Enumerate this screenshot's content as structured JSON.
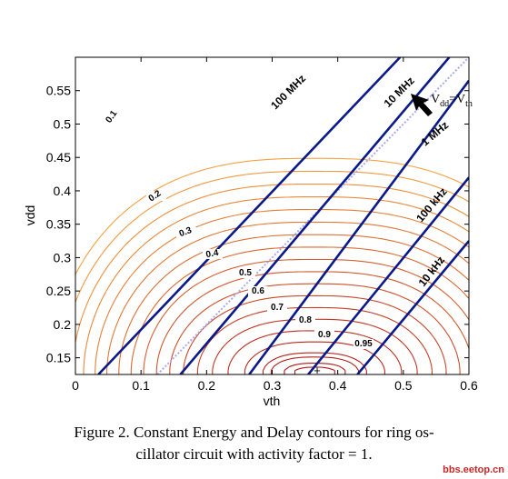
{
  "chart_data": {
    "type": "contour",
    "xlabel": "vth",
    "ylabel": "vdd",
    "xlim": [
      0,
      0.6
    ],
    "ylim": [
      0.125,
      0.6
    ],
    "xticks": [
      "0",
      "0.1",
      "0.2",
      "0.3",
      "0.4",
      "0.5",
      "0.6"
    ],
    "yticks": [
      "0.15",
      "0.2",
      "0.25",
      "0.3",
      "0.35",
      "0.4",
      "0.45",
      "0.5",
      "0.55"
    ],
    "energy_contour_labels": [
      "0.1",
      "0.2",
      "0.3",
      "0.4",
      "0.5",
      "0.6",
      "0.7",
      "0.8",
      "0.9",
      "0.95"
    ],
    "delay_contour_labels": [
      "100 MHz",
      "10 MHz",
      "1 MHz",
      "100 kHz",
      "10 kHz"
    ],
    "delay_lines": [
      {
        "name": "100 MHz",
        "x": [
          0.035,
          0.495
        ],
        "y": [
          0.125,
          0.6
        ]
      },
      {
        "name": "10 MHz",
        "x": [
          0.16,
          0.57
        ],
        "y": [
          0.125,
          0.6
        ]
      },
      {
        "name": "1 MHz",
        "x": [
          0.265,
          0.6
        ],
        "y": [
          0.125,
          0.565
        ]
      },
      {
        "name": "100 kHz",
        "x": [
          0.355,
          0.6
        ],
        "y": [
          0.125,
          0.42
        ]
      },
      {
        "name": "10 kHz",
        "x": [
          0.43,
          0.6
        ],
        "y": [
          0.125,
          0.325
        ]
      }
    ],
    "optimum_marker": {
      "x": 0.37,
      "y": 0.13
    },
    "annotation": "V_dd = V_th",
    "annotation_parts": [
      "V",
      "dd",
      "=V",
      "th"
    ],
    "grid": false,
    "colors": {
      "delay": "#0a1a8a",
      "energy_low": "#f5a142",
      "energy_high": "#b01818",
      "diagonal": "#a9a9ee"
    }
  },
  "caption": {
    "line1": "Figure 2. Constant Energy and Delay contours for ring os-",
    "line2": "cillator circuit with activity factor = 1."
  },
  "watermark": "bbs.eetop.cn"
}
